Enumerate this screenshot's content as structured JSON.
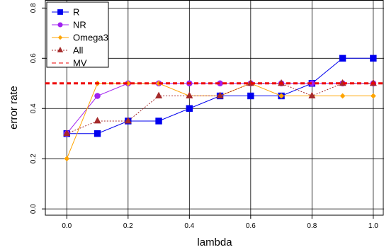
{
  "chart_data": {
    "type": "line",
    "xlabel": "lambda",
    "ylabel": "error rate",
    "xlim": [
      -0.07,
      1.035
    ],
    "ylim": [
      -0.025,
      0.832
    ],
    "xticks": [
      0.0,
      0.2,
      0.4,
      0.6,
      0.8,
      1.0
    ],
    "xtick_labels": [
      "0.0",
      "0.2",
      "0.4",
      "0.6",
      "0.8",
      "1.0"
    ],
    "yticks": [
      0.0,
      0.2,
      0.4,
      0.6,
      0.8
    ],
    "ytick_labels": [
      "0.0",
      "0.2",
      "0.4",
      "0.6",
      "0.8"
    ],
    "grid": true,
    "legend_position": "top-left",
    "x": [
      0.0,
      0.1,
      0.2,
      0.3,
      0.4,
      0.5,
      0.6,
      0.7,
      0.8,
      0.9,
      1.0
    ],
    "series": [
      {
        "name": "R",
        "color": "#0000ee",
        "line": "solid",
        "marker": "square",
        "values": [
          0.3,
          0.3,
          0.35,
          0.35,
          0.4,
          0.45,
          0.45,
          0.45,
          0.5,
          0.6,
          0.6
        ]
      },
      {
        "name": "NR",
        "color": "#a020f0",
        "line": "solid",
        "marker": "circle",
        "values": [
          0.3,
          0.45,
          0.5,
          0.5,
          0.5,
          0.5,
          0.5,
          0.5,
          0.5,
          0.5,
          0.5
        ]
      },
      {
        "name": "Omega3",
        "color": "#ffa500",
        "line": "solid",
        "marker": "diamond",
        "values": [
          0.2,
          0.5,
          0.5,
          0.5,
          0.45,
          0.45,
          0.5,
          0.45,
          0.45,
          0.45,
          0.45
        ]
      },
      {
        "name": "All",
        "color": "#a52a2a",
        "line": "dotted",
        "marker": "triangle",
        "values": [
          0.3,
          0.35,
          0.35,
          0.45,
          0.45,
          0.45,
          0.5,
          0.5,
          0.45,
          0.5,
          0.5
        ]
      },
      {
        "name": "MV",
        "color": "#ee0000",
        "line": "dashed",
        "marker": "none",
        "values": [
          0.5,
          0.5,
          0.5,
          0.5,
          0.5,
          0.5,
          0.5,
          0.5,
          0.5,
          0.5,
          0.5
        ]
      }
    ]
  }
}
